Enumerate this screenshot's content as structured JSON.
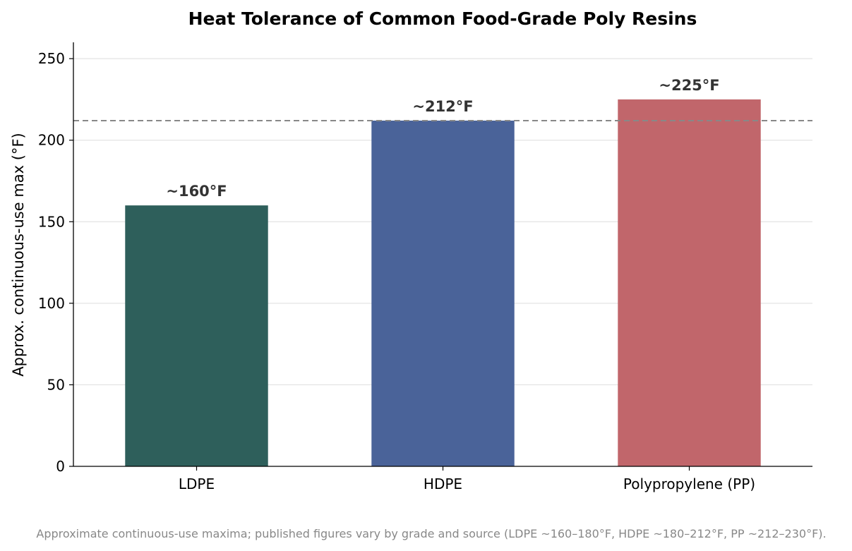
{
  "chart_data": {
    "type": "bar",
    "title": "Heat Tolerance of Common Food-Grade Poly Resins",
    "xlabel": "",
    "ylabel": "Approx. continuous-use max (°F)",
    "categories": [
      "LDPE",
      "HDPE",
      "Polypropylene (PP)"
    ],
    "values": [
      160,
      212,
      225
    ],
    "data_labels": [
      "~160°F",
      "~212°F",
      "~225°F"
    ],
    "colors": [
      "#2e5f5b",
      "#4a6399",
      "#c1666b"
    ],
    "ylim": [
      0,
      260
    ],
    "yticks": [
      0,
      50,
      100,
      150,
      200,
      250
    ],
    "reference_line": {
      "value": 212,
      "style": "dashed",
      "color": "#888888"
    },
    "grid": "horizontal",
    "footnote": "Approximate continuous-use maxima; published figures vary by grade and source (LDPE ~160–180°F, HDPE ~180–212°F, PP ~212–230°F)."
  }
}
